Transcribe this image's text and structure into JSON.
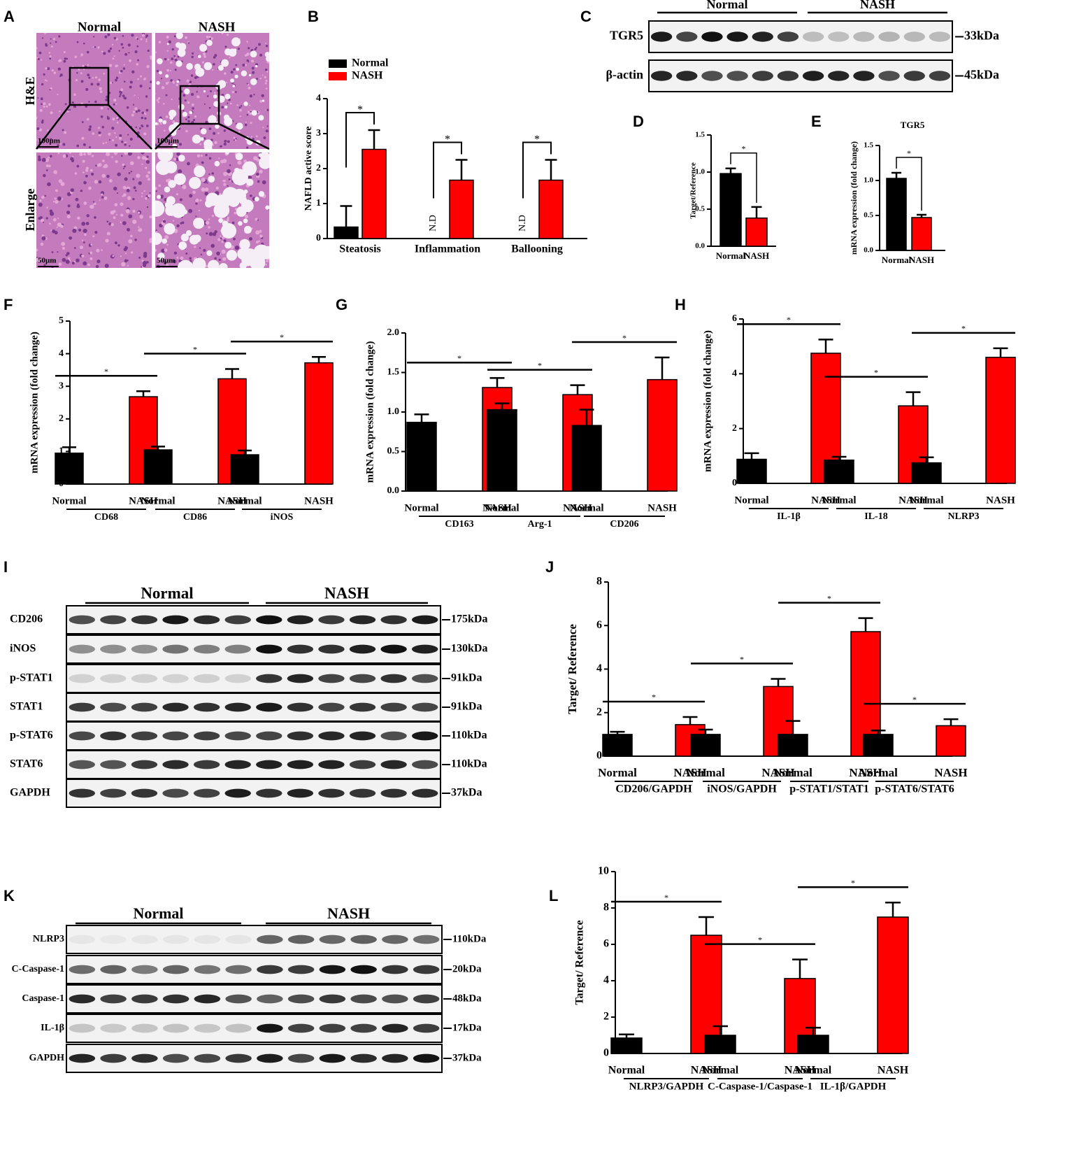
{
  "histology": {
    "panel": "A",
    "columns": [
      "Normal",
      "NASH"
    ],
    "rows": [
      "H&E",
      "Enlarge"
    ],
    "scale_bars": [
      "100μm",
      "100μm",
      "50μm",
      "50μm"
    ]
  },
  "blots": [
    {
      "panel": "C",
      "groups": [
        "Normal",
        "NASH"
      ],
      "rows": [
        {
          "label": "TGR5",
          "size": "33kDa"
        },
        {
          "label": "β-actin",
          "size": "45kDa"
        }
      ]
    },
    {
      "panel": "I",
      "groups": [
        "Normal",
        "NASH"
      ],
      "rows": [
        {
          "label": "CD206",
          "size": "175kDa"
        },
        {
          "label": "iNOS",
          "size": "130kDa"
        },
        {
          "label": "p-STAT1",
          "size": "91kDa"
        },
        {
          "label": "STAT1",
          "size": "91kDa"
        },
        {
          "label": "p-STAT6",
          "size": "110kDa"
        },
        {
          "label": "STAT6",
          "size": "110kDa"
        },
        {
          "label": "GAPDH",
          "size": "37kDa"
        }
      ]
    },
    {
      "panel": "K",
      "groups": [
        "Normal",
        "NASH"
      ],
      "rows": [
        {
          "label": "NLRP3",
          "size": "110kDa"
        },
        {
          "label": "C-Caspase-1",
          "size": "20kDa"
        },
        {
          "label": "Caspase-1",
          "size": "48kDa"
        },
        {
          "label": "IL-1β",
          "size": "17kDa"
        },
        {
          "label": "GAPDH",
          "size": "37kDa"
        }
      ]
    }
  ],
  "chart_data": [
    {
      "type": "bar",
      "panel": "B",
      "ylabel": "NAFLD active score",
      "categories": [
        "Steatosis",
        "Inflammation",
        "Ballooning"
      ],
      "series": [
        {
          "name": "Normal",
          "color": "#000000",
          "values": [
            0.33,
            null,
            null
          ],
          "errors": [
            0.6,
            null,
            null
          ],
          "value_labels": [
            null,
            "N.D",
            "N.D"
          ]
        },
        {
          "name": "NASH",
          "color": "#ff0000",
          "values": [
            2.55,
            1.67,
            1.67
          ],
          "errors": [
            0.55,
            0.58,
            0.58
          ]
        }
      ],
      "ylim": [
        0,
        4
      ],
      "yticks": [
        0,
        1,
        2,
        3,
        4
      ],
      "legend": "upper-left",
      "significance": "*"
    },
    {
      "type": "bar",
      "panel": "D",
      "ylabel": "Target/Reference",
      "categories": [
        "Normal",
        "NASH"
      ],
      "values": [
        0.98,
        0.38
      ],
      "errors": [
        0.07,
        0.15
      ],
      "colors": [
        "#000000",
        "#ff0000"
      ],
      "ylim": [
        0,
        1.5
      ],
      "yticks": [
        {
          "value": 0,
          "label": "0.0"
        },
        {
          "value": 0.5,
          "label": "0.5"
        },
        {
          "value": 1,
          "label": "1.0"
        },
        {
          "value": 1.5,
          "label": "1.5"
        }
      ],
      "significance": "*"
    },
    {
      "type": "bar",
      "panel": "E",
      "title": "TGR5",
      "ylabel": "mRNA expression (fold change)",
      "categories": [
        "Normal",
        "NASH"
      ],
      "values": [
        1.03,
        0.47
      ],
      "errors": [
        0.08,
        0.04
      ],
      "colors": [
        "#000000",
        "#ff0000"
      ],
      "ylim": [
        0,
        1.5
      ],
      "yticks": [
        {
          "value": 0,
          "label": "0.0"
        },
        {
          "value": 0.5,
          "label": "0.5"
        },
        {
          "value": 1,
          "label": "1.0"
        },
        {
          "value": 1.5,
          "label": "1.5"
        }
      ],
      "significance": "*"
    },
    {
      "type": "bar",
      "panel": "F",
      "ylabel": "mRNA expression (fold change)",
      "categories": [
        "CD68",
        "CD86",
        "iNOS"
      ],
      "series": [
        {
          "name": "Normal",
          "color": "#000000",
          "values": [
            0.95,
            1.05,
            0.9
          ],
          "errors": [
            0.18,
            0.1,
            0.13
          ]
        },
        {
          "name": "NASH",
          "color": "#ff0000",
          "values": [
            2.68,
            3.23,
            3.72
          ],
          "errors": [
            0.17,
            0.3,
            0.18
          ]
        }
      ],
      "ylim": [
        0,
        5
      ],
      "yticks": [
        0,
        1,
        2,
        3,
        4,
        5
      ],
      "significance": "*"
    },
    {
      "type": "bar",
      "panel": "G",
      "ylabel": "mRNA expression (fold change)",
      "categories": [
        "CD163",
        "Arg-1",
        "CD206"
      ],
      "series": [
        {
          "name": "Normal",
          "color": "#000000",
          "values": [
            0.87,
            1.03,
            0.83
          ],
          "errors": [
            0.1,
            0.08,
            0.2
          ]
        },
        {
          "name": "NASH",
          "color": "#ff0000",
          "values": [
            1.31,
            1.22,
            1.41
          ],
          "errors": [
            0.12,
            0.12,
            0.28
          ]
        }
      ],
      "ylim": [
        0,
        2
      ],
      "yticks": [
        {
          "value": 0,
          "label": "0.0"
        },
        {
          "value": 0.5,
          "label": "0.5"
        },
        {
          "value": 1,
          "label": "1.0"
        },
        {
          "value": 1.5,
          "label": "1.5"
        },
        {
          "value": 2,
          "label": "2.0"
        }
      ],
      "significance": "*"
    },
    {
      "type": "bar",
      "panel": "H",
      "ylabel": "mRNA expression (fold change)",
      "categories": [
        "IL-1β",
        "IL-18",
        "NLRP3"
      ],
      "series": [
        {
          "name": "Normal",
          "color": "#000000",
          "values": [
            0.88,
            0.85,
            0.75
          ],
          "errors": [
            0.22,
            0.12,
            0.2
          ]
        },
        {
          "name": "NASH",
          "color": "#ff0000",
          "values": [
            4.75,
            2.83,
            4.6
          ],
          "errors": [
            0.5,
            0.5,
            0.33
          ]
        }
      ],
      "ylim": [
        0,
        6
      ],
      "yticks": [
        0,
        2,
        4,
        6
      ],
      "significance": "*"
    },
    {
      "type": "bar",
      "panel": "J",
      "ylabel": "Target/ Reference",
      "categories": [
        "CD206/GAPDH",
        "iNOS/GAPDH",
        "p-STAT1/STAT1",
        "p-STAT6/STAT6"
      ],
      "series": [
        {
          "name": "Normal",
          "color": "#000000",
          "values": [
            1,
            1,
            1,
            1
          ],
          "errors": [
            0.12,
            0.22,
            0.62,
            0.18
          ]
        },
        {
          "name": "NASH",
          "color": "#ff0000",
          "values": [
            1.45,
            3.2,
            5.72,
            1.4
          ],
          "errors": [
            0.35,
            0.35,
            0.62,
            0.3
          ]
        }
      ],
      "ylim": [
        0,
        8
      ],
      "yticks": [
        0,
        2,
        4,
        6,
        8
      ],
      "significance": "*"
    },
    {
      "type": "bar",
      "panel": "L",
      "ylabel": "Target/ Reference",
      "categories": [
        "NLRP3/GAPDH",
        "C-Caspase-1/Caspase-1",
        "IL-1β/GAPDH"
      ],
      "series": [
        {
          "name": "Normal",
          "color": "#000000",
          "values": [
            0.85,
            1,
            1
          ],
          "errors": [
            0.2,
            0.5,
            0.42
          ]
        },
        {
          "name": "NASH",
          "color": "#ff0000",
          "values": [
            6.5,
            4.12,
            7.5
          ],
          "errors": [
            1.0,
            1.05,
            0.8
          ]
        }
      ],
      "ylim": [
        0,
        10
      ],
      "yticks": [
        0,
        2,
        4,
        6,
        8,
        10
      ],
      "significance": "*"
    }
  ]
}
